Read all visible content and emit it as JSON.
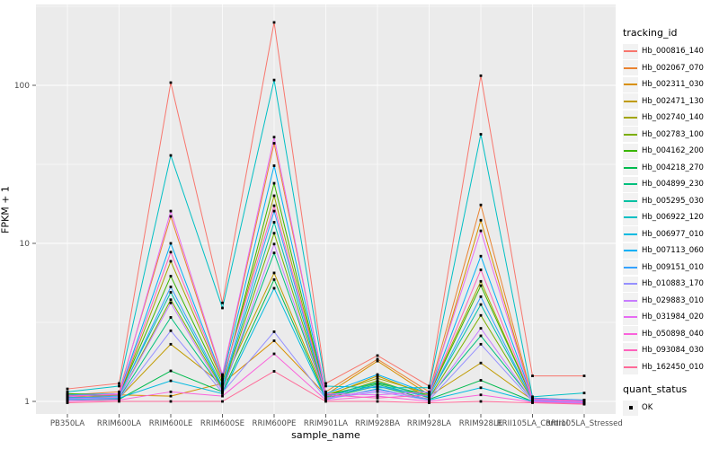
{
  "figure": {
    "xlabel": "sample_name",
    "ylabel": "FPKM + 1",
    "legend_title": "tracking_id",
    "quant_title": "quant_status",
    "quant_ok_label": "OK"
  },
  "colors": {
    "panel_bg": "#EBEBEB",
    "grid": "#FFFFFF",
    "marker": "#000000",
    "axis_text": "#4D4D4D",
    "tick": "#333333",
    "legend_key_bg": "#F2F2F2"
  },
  "chart_data": {
    "type": "line",
    "x_type": "categorical",
    "y_scale": "log10",
    "title": "",
    "xlabel": "sample_name",
    "ylabel": "FPKM + 1",
    "y_ticks": [
      1,
      10,
      100
    ],
    "grid": true,
    "legend_position": "right",
    "legend_title": "tracking_id",
    "quant_status": {
      "title": "quant_status",
      "values": [
        "OK"
      ]
    },
    "categories": [
      "PB350LA",
      "RRIM600LA",
      "RRIM600LE",
      "RRIM600SE",
      "RRIM600PE",
      "RRIM901LA",
      "RRIM928BA",
      "RRIM928LA",
      "RRIM928LE",
      "RRII105LA_Control",
      "RRII105LA_Stressed"
    ],
    "series": [
      {
        "name": "Hb_000816_140",
        "color": "#F8766D",
        "values": [
          1.2,
          1.3,
          104,
          4.2,
          250,
          1.3,
          1.95,
          1.25,
          115,
          1.45,
          1.45
        ]
      },
      {
        "name": "Hb_002067_070",
        "color": "#EA8331",
        "values": [
          1.1,
          1.15,
          14.8,
          1.45,
          43,
          1.15,
          1.85,
          1.15,
          17.5,
          1.05,
          1.02
        ]
      },
      {
        "name": "Hb_002311_030",
        "color": "#D89000",
        "values": [
          1.05,
          1.1,
          1.08,
          1.3,
          2.42,
          1.1,
          1.8,
          1.1,
          14.0,
          1.03,
          1.0
        ]
      },
      {
        "name": "Hb_002471_130",
        "color": "#C09B00",
        "values": [
          1.08,
          1.05,
          2.3,
          1.28,
          6.5,
          1.08,
          1.45,
          1.08,
          1.75,
          1.02,
          1.0
        ]
      },
      {
        "name": "Hb_002740_140",
        "color": "#A3A500",
        "values": [
          1.1,
          1.08,
          7.7,
          1.35,
          20,
          1.1,
          1.4,
          1.12,
          5.75,
          1.03,
          1.0
        ]
      },
      {
        "name": "Hb_002783_100",
        "color": "#7CAE00",
        "values": [
          1.05,
          1.06,
          4.4,
          1.2,
          11.6,
          1.06,
          1.35,
          1.05,
          3.5,
          1.02,
          0.99
        ]
      },
      {
        "name": "Hb_004162_200",
        "color": "#39B600",
        "values": [
          1.12,
          1.1,
          6.2,
          1.3,
          24,
          1.1,
          1.3,
          1.1,
          5.4,
          1.04,
          1.01
        ]
      },
      {
        "name": "Hb_004218_270",
        "color": "#00BB4E",
        "values": [
          1.02,
          1.03,
          1.56,
          1.15,
          5.9,
          1.05,
          1.25,
          1.03,
          1.36,
          1.0,
          0.98
        ]
      },
      {
        "name": "Hb_004899_230",
        "color": "#00BF7D",
        "values": [
          1.06,
          1.05,
          3.4,
          1.18,
          8.7,
          1.07,
          1.28,
          1.06,
          2.6,
          1.02,
          1.0
        ]
      },
      {
        "name": "Hb_005295_030",
        "color": "#00C1A3",
        "values": [
          1.08,
          1.1,
          4.9,
          1.22,
          13.6,
          1.08,
          1.32,
          1.08,
          4.1,
          1.03,
          1.0
        ]
      },
      {
        "name": "Hb_006922_120",
        "color": "#00BFC4",
        "values": [
          1.15,
          1.25,
          36,
          3.9,
          108,
          1.25,
          1.22,
          1.22,
          49,
          1.07,
          1.13
        ]
      },
      {
        "name": "Hb_006977_010",
        "color": "#00BAE0",
        "values": [
          1.03,
          1.05,
          1.35,
          1.12,
          5.2,
          1.03,
          1.2,
          1.02,
          1.22,
          1.0,
          0.99
        ]
      },
      {
        "name": "Hb_007113_060",
        "color": "#00B0F6",
        "values": [
          1.1,
          1.12,
          10.0,
          1.4,
          31,
          1.12,
          1.48,
          1.12,
          8.3,
          1.05,
          1.02
        ]
      },
      {
        "name": "Hb_009151_010",
        "color": "#35A2FF",
        "values": [
          1.05,
          1.08,
          5.3,
          1.25,
          16,
          1.08,
          1.25,
          1.07,
          4.6,
          1.02,
          1.0
        ]
      },
      {
        "name": "Hb_010883_170",
        "color": "#9590FF",
        "values": [
          1.02,
          1.04,
          2.8,
          1.14,
          2.76,
          1.04,
          1.15,
          1.02,
          2.3,
          1.0,
          0.98
        ]
      },
      {
        "name": "Hb_029883_010",
        "color": "#C77CFF",
        "values": [
          1.04,
          1.06,
          4.2,
          1.16,
          9.9,
          1.05,
          1.18,
          1.04,
          2.9,
          1.01,
          0.99
        ]
      },
      {
        "name": "Hb_031984_020",
        "color": "#E76BF3",
        "values": [
          1.07,
          1.12,
          16.0,
          1.48,
          47,
          1.12,
          1.1,
          1.15,
          12.0,
          1.04,
          1.01
        ]
      },
      {
        "name": "Hb_050898_040",
        "color": "#FA62DB",
        "values": [
          1.0,
          1.02,
          1.15,
          1.08,
          2.0,
          1.02,
          1.08,
          1.0,
          1.1,
          0.99,
          0.97
        ]
      },
      {
        "name": "Hb_093084_030",
        "color": "#FF62BC",
        "values": [
          1.09,
          1.1,
          8.8,
          1.38,
          17.3,
          1.1,
          1.05,
          1.1,
          6.8,
          1.03,
          1.0
        ]
      },
      {
        "name": "Hb_162450_010",
        "color": "#FF6A98",
        "values": [
          0.98,
          1.0,
          1.0,
          1.0,
          1.55,
          1.0,
          1.0,
          0.98,
          1.0,
          0.98,
          0.96
        ]
      }
    ]
  }
}
